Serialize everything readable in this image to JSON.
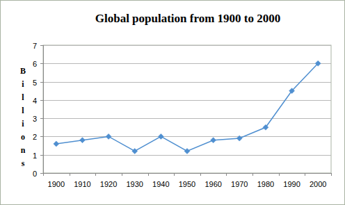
{
  "chart_data": {
    "type": "line",
    "title": "Global population from 1900 to 2000",
    "y_label": "Billions",
    "categories": [
      "1900",
      "1910",
      "1920",
      "1930",
      "1940",
      "1950",
      "1960",
      "1970",
      "1980",
      "1990",
      "2000"
    ],
    "values": [
      1.6,
      1.8,
      2.0,
      1.2,
      2.0,
      1.2,
      1.8,
      1.9,
      2.5,
      4.5,
      6.0
    ],
    "color": "#4f8fd0",
    "marker": "diamond",
    "ylim": [
      0,
      7
    ],
    "yticks": [
      0,
      1,
      2,
      3,
      4,
      5,
      6,
      7
    ],
    "grid": true
  }
}
